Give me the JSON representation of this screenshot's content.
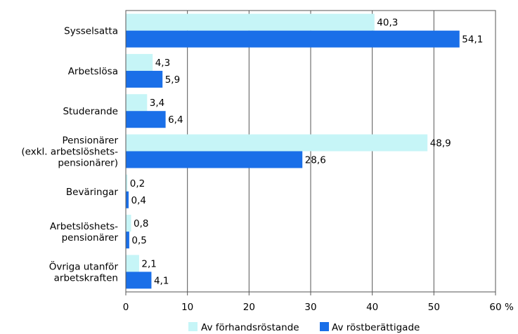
{
  "chart_data": {
    "type": "bar",
    "orientation": "horizontal",
    "title": "",
    "xlabel": "",
    "ylabel": "",
    "x_unit": "%",
    "xlim": [
      0,
      60
    ],
    "xticks": [
      0,
      10,
      20,
      30,
      40,
      50,
      60
    ],
    "grid": "vertical",
    "legend_position": "bottom",
    "categories": [
      [
        "Sysselsatta"
      ],
      [
        "Arbetslösa"
      ],
      [
        "Studerande"
      ],
      [
        "Pensionärer",
        "(exkl. arbetslöshets-",
        "pensionärer)"
      ],
      [
        "Beväringar"
      ],
      [
        "Arbetslöshets-",
        "pensionärer"
      ],
      [
        "Övriga utanför",
        "arbetskraften"
      ]
    ],
    "series": [
      {
        "name": "Av förhandsröstande",
        "color": "#c6f5f7",
        "values": [
          40.3,
          4.3,
          3.4,
          48.9,
          0.2,
          0.8,
          2.1
        ],
        "labels": [
          "40,3",
          "4,3",
          "3,4",
          "48,9",
          "0,2",
          "0,8",
          "2,1"
        ]
      },
      {
        "name": "Av röstberättigade",
        "color": "#1a6fe8",
        "values": [
          54.1,
          5.9,
          6.4,
          28.6,
          0.4,
          0.5,
          4.1
        ],
        "labels": [
          "54,1",
          "5,9",
          "6,4",
          "28,6",
          "0,4",
          "0,5",
          "4,1"
        ]
      }
    ]
  }
}
